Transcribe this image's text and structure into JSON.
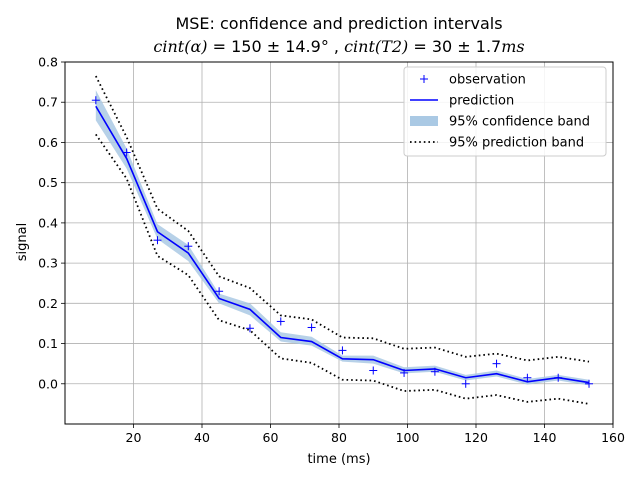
{
  "chart_data": {
    "type": "line",
    "title": "MSE: confidence and prediction intervals",
    "subtitle_parts": {
      "alpha_label": "cint(α)",
      "alpha_value": " = 150 ± 14.9°",
      "separator": " , ",
      "t2_label": "cint(T2)",
      "t2_value": " = 30 ± 1.7",
      "t2_unit": "ms"
    },
    "xlabel": "time (ms)",
    "ylabel": "signal",
    "xlim": [
      0,
      160
    ],
    "ylim": [
      -0.1,
      0.8
    ],
    "xticks": [
      20,
      40,
      60,
      80,
      100,
      120,
      140,
      160
    ],
    "yticks": [
      0.0,
      0.1,
      0.2,
      0.3,
      0.4,
      0.5,
      0.6,
      0.7,
      0.8
    ],
    "ytick_labels": [
      "0.0",
      "0.1",
      "0.2",
      "0.3",
      "0.4",
      "0.5",
      "0.6",
      "0.7",
      "0.8"
    ],
    "grid": true,
    "legend_position": "top-right",
    "x": [
      9,
      18,
      27,
      36,
      45,
      54,
      63,
      72,
      81,
      90,
      99,
      108,
      117,
      126,
      135,
      144,
      153
    ],
    "series": [
      {
        "name": "observation",
        "kind": "marker",
        "marker": "+",
        "color": "#0000ff",
        "values": [
          0.705,
          0.575,
          0.357,
          0.342,
          0.23,
          0.138,
          0.155,
          0.14,
          0.083,
          0.033,
          0.027,
          0.03,
          0.0,
          0.05,
          0.015,
          0.015,
          0.0
        ]
      },
      {
        "name": "prediction",
        "kind": "line",
        "color": "#0000ff",
        "values": [
          0.69,
          0.56,
          0.378,
          0.325,
          0.212,
          0.185,
          0.115,
          0.105,
          0.062,
          0.06,
          0.033,
          0.037,
          0.015,
          0.025,
          0.005,
          0.015,
          0.003
        ]
      },
      {
        "name": "95% confidence band",
        "kind": "band",
        "color": "#aac9e4",
        "lower": [
          0.655,
          0.535,
          0.36,
          0.305,
          0.2,
          0.17,
          0.105,
          0.095,
          0.055,
          0.05,
          0.026,
          0.03,
          0.008,
          0.018,
          -0.002,
          0.008,
          -0.004
        ],
        "upper": [
          0.73,
          0.585,
          0.397,
          0.345,
          0.224,
          0.2,
          0.128,
          0.117,
          0.07,
          0.07,
          0.041,
          0.045,
          0.022,
          0.033,
          0.012,
          0.022,
          0.01
        ]
      },
      {
        "name": "95% prediction band",
        "kind": "dotted",
        "color": "#000000",
        "lower": [
          0.62,
          0.51,
          0.318,
          0.27,
          0.158,
          0.133,
          0.063,
          0.052,
          0.01,
          0.008,
          -0.018,
          -0.015,
          -0.037,
          -0.028,
          -0.045,
          -0.037,
          -0.05
        ],
        "upper": [
          0.765,
          0.613,
          0.435,
          0.38,
          0.267,
          0.238,
          0.17,
          0.16,
          0.115,
          0.113,
          0.087,
          0.09,
          0.067,
          0.075,
          0.058,
          0.067,
          0.055
        ]
      }
    ]
  }
}
